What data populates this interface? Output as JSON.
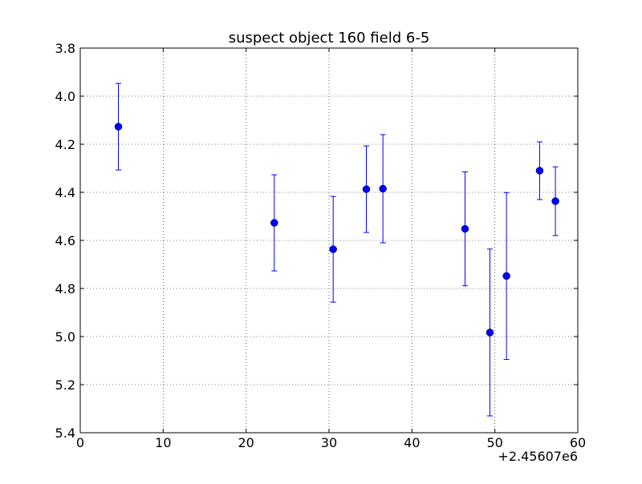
{
  "chart_data": {
    "type": "scatter",
    "title": "suspect object 160 field 6-5",
    "xlabel": "",
    "ylabel": "",
    "x_offset_label": "+2.45607e6",
    "xlim": [
      0,
      60
    ],
    "ylim": [
      3.8,
      5.4
    ],
    "y_inverted": true,
    "grid": true,
    "x_ticks": [
      0,
      10,
      20,
      30,
      40,
      50,
      60
    ],
    "x_tick_labels": [
      "0",
      "10",
      "20",
      "30",
      "40",
      "50",
      "60"
    ],
    "y_ticks": [
      3.8,
      4.0,
      4.2,
      4.4,
      4.6,
      4.8,
      5.0,
      5.2,
      5.4
    ],
    "y_tick_labels": [
      "3.8",
      "4.0",
      "4.2",
      "4.4",
      "4.6",
      "4.8",
      "5.0",
      "5.2",
      "5.4"
    ],
    "color": "#0000ff",
    "series": [
      {
        "points": [
          {
            "x": 4.6,
            "y": 4.127,
            "err": 0.18
          },
          {
            "x": 23.4,
            "y": 4.527,
            "err": 0.2
          },
          {
            "x": 30.5,
            "y": 4.637,
            "err": 0.22
          },
          {
            "x": 34.5,
            "y": 4.387,
            "err": 0.18
          },
          {
            "x": 36.5,
            "y": 4.385,
            "err": 0.225
          },
          {
            "x": 46.4,
            "y": 4.552,
            "err": 0.237
          },
          {
            "x": 49.4,
            "y": 4.983,
            "err": 0.347
          },
          {
            "x": 51.4,
            "y": 4.748,
            "err": 0.347
          },
          {
            "x": 55.4,
            "y": 4.31,
            "err": 0.12
          },
          {
            "x": 57.3,
            "y": 4.437,
            "err": 0.143
          }
        ]
      }
    ]
  }
}
